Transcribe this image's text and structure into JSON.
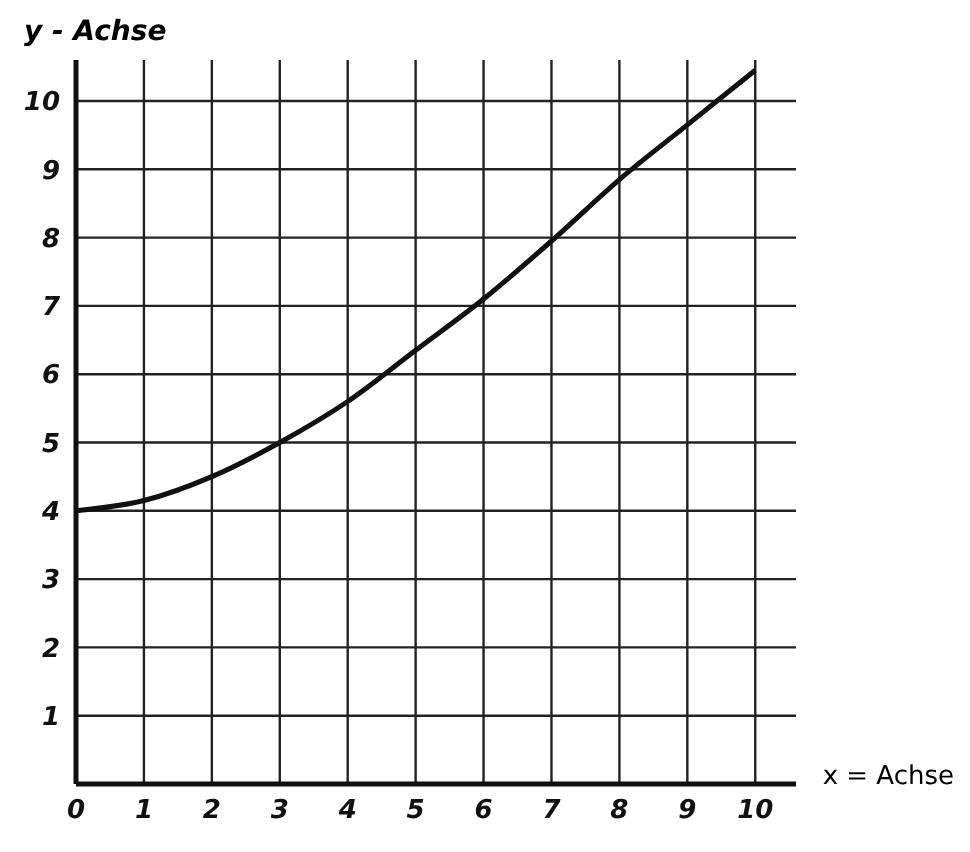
{
  "chart_data": {
    "type": "line",
    "xlabel": "x = Achse",
    "ylabel": "y - Achse",
    "x": [
      0,
      1,
      2,
      3,
      4,
      5,
      6,
      7,
      8,
      9,
      10
    ],
    "series": [
      {
        "color": "#111111",
        "values": [
          4,
          4.15,
          4.5,
          5,
          5.6,
          6.35,
          7.1,
          7.95,
          8.85,
          9.65,
          10.45
        ]
      }
    ],
    "xlim": [
      0,
      10.6
    ],
    "xticks": [
      0,
      1,
      2,
      3,
      4,
      5,
      6,
      7,
      8,
      9,
      10
    ],
    "ylim": [
      0,
      10.6
    ],
    "yticks": [
      1,
      2,
      3,
      4,
      5,
      6,
      7,
      8,
      9,
      10
    ],
    "grid": true,
    "marker": "none",
    "line_style": "solid"
  }
}
